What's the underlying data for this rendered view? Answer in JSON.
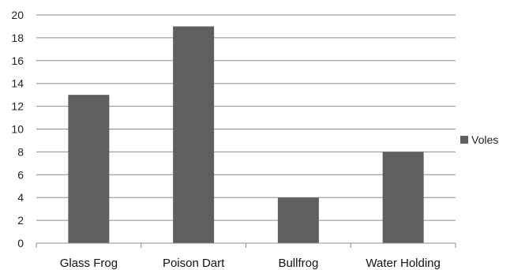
{
  "chart_data": {
    "type": "bar",
    "categories": [
      "Glass Frog",
      "Poison Dart",
      "Bullfrog",
      "Water Holding"
    ],
    "series": [
      {
        "name": "Voles",
        "values": [
          13,
          19,
          4,
          8
        ]
      }
    ],
    "ylim": [
      0,
      20
    ],
    "yticks": [
      0,
      2,
      4,
      6,
      8,
      10,
      12,
      14,
      16,
      18,
      20
    ],
    "grid": true,
    "legend": "right",
    "bar_color": "#5f5f5f",
    "grid_color": "#8c8c8c"
  }
}
